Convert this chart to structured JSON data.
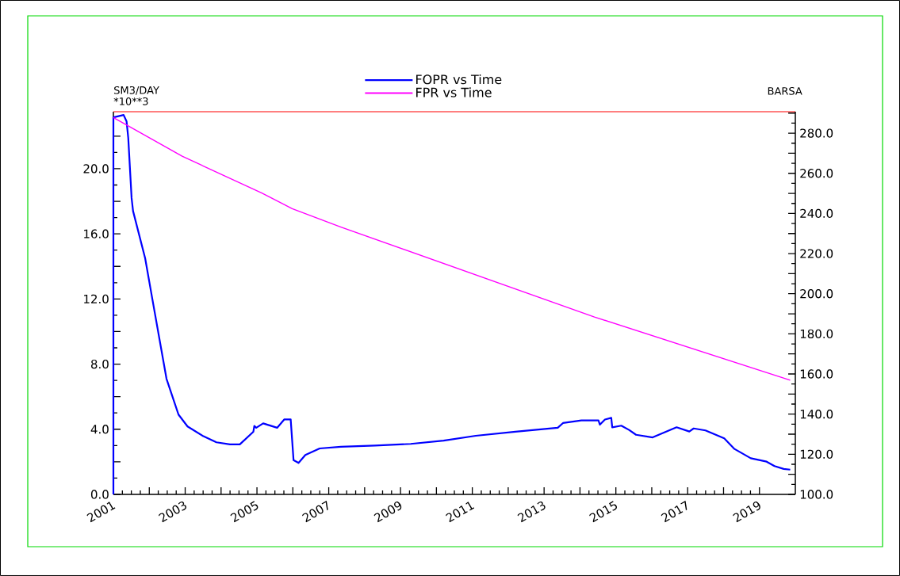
{
  "chart_data": {
    "type": "line",
    "ylabel": "SM3/DAY",
    "y2label": "BARSA",
    "annotations": [
      "*10**3"
    ],
    "legend": "top",
    "marker": "none",
    "line_style": "solid",
    "grid": false,
    "xlim": [
      "2001-01-01",
      "2020-01-01"
    ],
    "xticks": [
      {
        "value": "2001-01-01",
        "label": "2001"
      },
      {
        "value": "2002-01-01",
        "label": null
      },
      {
        "value": "2003-01-01",
        "label": "2003"
      },
      {
        "value": "2004-01-01",
        "label": null
      },
      {
        "value": "2005-01-01",
        "label": "2005"
      },
      {
        "value": "2006-01-01",
        "label": null
      },
      {
        "value": "2007-01-01",
        "label": "2007"
      },
      {
        "value": "2008-01-01",
        "label": null
      },
      {
        "value": "2009-01-01",
        "label": "2009"
      },
      {
        "value": "2010-01-01",
        "label": null
      },
      {
        "value": "2011-01-01",
        "label": "2011"
      },
      {
        "value": "2012-01-01",
        "label": null
      },
      {
        "value": "2013-01-01",
        "label": "2013"
      },
      {
        "value": "2014-01-01",
        "label": null
      },
      {
        "value": "2015-01-01",
        "label": "2015"
      },
      {
        "value": "2016-01-01",
        "label": null
      },
      {
        "value": "2017-01-01",
        "label": "2017"
      },
      {
        "value": "2018-01-01",
        "label": null
      },
      {
        "value": "2019-01-01",
        "label": "2019"
      }
    ],
    "ylim": [
      0,
      23.5
    ],
    "yticks": [
      {
        "value": 0,
        "label": "0.0"
      },
      {
        "value": 2,
        "label": null
      },
      {
        "value": 4,
        "label": "4.0"
      },
      {
        "value": 6,
        "label": null
      },
      {
        "value": 8,
        "label": "8.0"
      },
      {
        "value": 10,
        "label": null
      },
      {
        "value": 12,
        "label": "12.0"
      },
      {
        "value": 14,
        "label": null
      },
      {
        "value": 16,
        "label": "16.0"
      },
      {
        "value": 18,
        "label": null
      },
      {
        "value": 20,
        "label": "20.0"
      },
      {
        "value": 22,
        "label": null
      }
    ],
    "y2lim": [
      100,
      290.7
    ],
    "y2ticks": [
      {
        "value": 100,
        "label": "100.0"
      },
      {
        "value": 110,
        "label": null
      },
      {
        "value": 120,
        "label": "120.0"
      },
      {
        "value": 130,
        "label": null
      },
      {
        "value": 140,
        "label": "140.0"
      },
      {
        "value": 150,
        "label": null
      },
      {
        "value": 160,
        "label": "160.0"
      },
      {
        "value": 170,
        "label": null
      },
      {
        "value": 180,
        "label": "180.0"
      },
      {
        "value": 190,
        "label": null
      },
      {
        "value": 200,
        "label": "200.0"
      },
      {
        "value": 210,
        "label": null
      },
      {
        "value": 220,
        "label": "220.0"
      },
      {
        "value": 230,
        "label": null
      },
      {
        "value": 240,
        "label": "240.0"
      },
      {
        "value": 250,
        "label": null
      },
      {
        "value": 260,
        "label": "260.0"
      },
      {
        "value": 270,
        "label": null
      },
      {
        "value": 280,
        "label": "280.0"
      },
      {
        "value": 290,
        "label": null
      }
    ],
    "series": [
      {
        "name": "FOPR vs Time",
        "color": "#0000ff",
        "x": [
          "2001-01-01",
          "2001-01-01",
          "2001-04-15",
          "2001-05-15",
          "2001-06-01",
          "2001-07-05",
          "2001-07-20",
          "2001-11-20",
          "2002-02-01",
          "2002-06-25",
          "2002-10-25",
          "2003-01-25",
          "2003-07-05",
          "2003-11-15",
          "2004-04-01",
          "2004-07-10",
          "2004-11-25",
          "2004-12-05",
          "2004-12-25",
          "2005-03-05",
          "2005-07-25",
          "2005-10-05",
          "2005-12-10",
          "2006-01-08",
          "2006-02-28",
          "2006-05-08",
          "2006-10-01",
          "2007-05-05",
          "2008-04-15",
          "2009-04-15",
          "2010-03-15",
          "2011-02-05",
          "2012-03-15",
          "2013-05-20",
          "2013-07-12",
          "2014-01-15",
          "2014-07-08",
          "2014-07-22",
          "2014-09-12",
          "2014-11-15",
          "2014-11-25",
          "2015-02-25",
          "2015-05-15",
          "2015-07-25",
          "2016-01-10",
          "2016-09-10",
          "2017-01-18",
          "2017-03-03",
          "2017-07-01",
          "2018-01-08",
          "2018-04-22",
          "2018-10-05",
          "2019-03-15",
          "2019-06-03",
          "2019-09-05",
          "2019-11-10"
        ],
        "values": [
          0,
          23.15,
          23.3,
          22.9,
          21.9,
          18.2,
          17.4,
          14.5,
          12.0,
          7.1,
          4.9,
          4.17,
          3.57,
          3.2,
          3.07,
          3.07,
          3.84,
          4.2,
          4.09,
          4.36,
          4.09,
          4.6,
          4.6,
          2.1,
          1.93,
          2.42,
          2.82,
          2.92,
          3.0,
          3.1,
          3.3,
          3.6,
          3.85,
          4.09,
          4.38,
          4.54,
          4.54,
          4.28,
          4.6,
          4.7,
          4.12,
          4.22,
          3.96,
          3.66,
          3.5,
          4.12,
          3.86,
          4.05,
          3.93,
          3.44,
          2.79,
          2.22,
          2.01,
          1.74,
          1.56,
          1.52
        ]
      },
      {
        "name": "FPR vs Time",
        "color": "#ff00ff",
        "axis": "y2",
        "x": [
          "2001-01-01",
          "2002-12-01",
          "2005-02-15",
          "2005-12-25",
          "2007-05-05",
          "2014-05-28",
          "2019-11-10"
        ],
        "values": [
          287.8,
          268.5,
          250.3,
          242.4,
          233.2,
          188.4,
          156.9
        ]
      }
    ]
  }
}
